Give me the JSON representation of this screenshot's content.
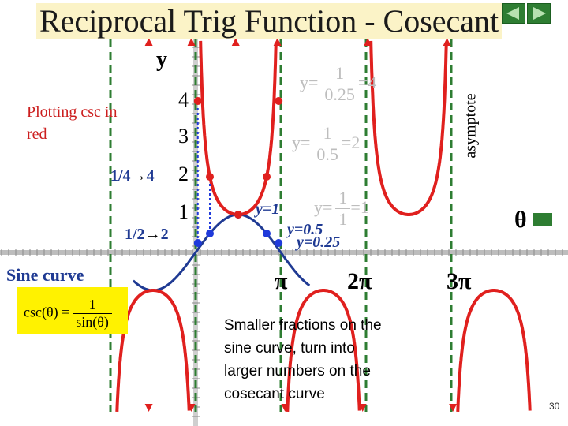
{
  "title": "Reciprocal Trig Function - Cosecant",
  "axis_y_label": "y",
  "theta_label": "θ",
  "note_plotting": "Plotting csc in red",
  "sine_label": "Sine curve",
  "asymptote_label": "asymptote",
  "fraction_quarter": "1/4",
  "fraction_quarter_target": "4",
  "fraction_half": "1/2",
  "fraction_half_target": "2",
  "y_ticks": [
    "4",
    "3",
    "2",
    "1"
  ],
  "x_ticks": [
    "π",
    "2π",
    "3π"
  ],
  "point_labels": {
    "y1": "y=1",
    "y05": "y=0.5",
    "y025": "y=0.25"
  },
  "faint_formulas": [
    {
      "lhs": "y=",
      "num": "1",
      "den": "0.25",
      "rhs": "=4"
    },
    {
      "lhs": "y=",
      "num": "1",
      "den": "0.5",
      "rhs": "=2"
    },
    {
      "lhs": "y=",
      "num": "1",
      "den": "1",
      "rhs": "=1"
    }
  ],
  "csc_def": {
    "lhs": "csc(θ) =",
    "num": "1",
    "den": "sin(θ)"
  },
  "explanation": [
    "Smaller fractions on the",
    "sine curve, turn into",
    "larger numbers on the",
    "cosecant curve"
  ],
  "page_number": "30",
  "colors": {
    "csc": "#e0201e",
    "sine": "#1f3a93",
    "asymptote": "#2e7d32",
    "points": "#1f3adb",
    "title_bg": "#fbf3c7",
    "formula_bg": "#fff200"
  }
}
